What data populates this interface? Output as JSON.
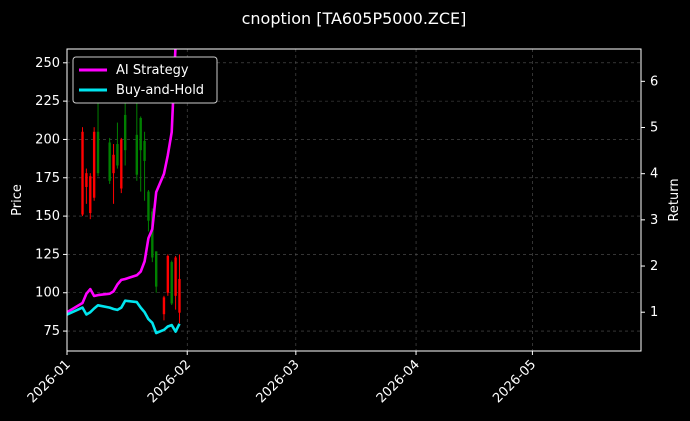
{
  "chart_data": {
    "type": "line",
    "title": "cnoption [TA605P5000.ZCE]",
    "ylabel": "Price",
    "y2label": "Return",
    "xlim": [
      "2026-01-01",
      "2026-05-29"
    ],
    "ylim": [
      62,
      259
    ],
    "y2lim": [
      0.16,
      6.7
    ],
    "xticks": [
      "2026-01",
      "2026-02",
      "2026-03",
      "2026-04",
      "2026-05"
    ],
    "yticks": [
      75,
      100,
      125,
      150,
      175,
      200,
      225,
      250
    ],
    "y2ticks": [
      1,
      2,
      3,
      4,
      5,
      6
    ],
    "grid": true,
    "legend_position": "top-left",
    "colors": {
      "background": "#000000",
      "up_candle": "#008000",
      "down_candle": "#ff0000",
      "ai_strategy": "#ff00ff",
      "buy_and_hold": "#00e5ee",
      "grid": "#555555"
    },
    "candles": [
      {
        "date": "2026-01-05",
        "open": 205,
        "close": 151,
        "high": 208,
        "low": 150
      },
      {
        "date": "2026-01-06",
        "open": 178,
        "close": 169,
        "high": 181,
        "low": 158
      },
      {
        "date": "2026-01-07",
        "open": 176,
        "close": 152,
        "high": 178,
        "low": 148
      },
      {
        "date": "2026-01-08",
        "open": 205,
        "close": 162,
        "high": 208,
        "low": 160
      },
      {
        "date": "2026-01-09",
        "open": 178,
        "close": 205,
        "high": 230,
        "low": 176
      },
      {
        "date": "2026-01-12",
        "open": 173,
        "close": 198,
        "high": 201,
        "low": 171
      },
      {
        "date": "2026-01-13",
        "open": 190,
        "close": 178,
        "high": 197,
        "low": 158
      },
      {
        "date": "2026-01-14",
        "open": 183,
        "close": 197,
        "high": 211,
        "low": 181
      },
      {
        "date": "2026-01-15",
        "open": 200,
        "close": 168,
        "high": 201,
        "low": 165
      },
      {
        "date": "2026-01-16",
        "open": 193,
        "close": 216,
        "high": 242,
        "low": 183
      },
      {
        "date": "2026-01-19",
        "open": 177,
        "close": 203,
        "high": 226,
        "low": 173
      },
      {
        "date": "2026-01-20",
        "open": 193,
        "close": 214,
        "high": 215,
        "low": 166
      },
      {
        "date": "2026-01-21",
        "open": 186,
        "close": 199,
        "high": 205,
        "low": 160
      },
      {
        "date": "2026-01-22",
        "open": 147,
        "close": 166,
        "high": 167,
        "low": 140
      },
      {
        "date": "2026-01-23",
        "open": 123,
        "close": 153,
        "high": 155,
        "low": 120
      },
      {
        "date": "2026-01-24",
        "open": 104,
        "close": 127,
        "high": 127,
        "low": 100
      },
      {
        "date": "2026-01-26",
        "open": 97,
        "close": 86,
        "high": 98,
        "low": 82
      },
      {
        "date": "2026-01-27",
        "open": 124,
        "close": 100,
        "high": 125,
        "low": 98
      },
      {
        "date": "2026-01-28",
        "open": 93,
        "close": 120,
        "high": 121,
        "low": 92
      },
      {
        "date": "2026-01-29",
        "open": 123,
        "close": 98,
        "high": 124,
        "low": 89
      },
      {
        "date": "2026-01-30",
        "open": 109,
        "close": 87,
        "high": 125,
        "low": 80
      }
    ],
    "series": [
      {
        "name": "AI Strategy",
        "x": [
          "2026-01-01",
          "2026-01-05",
          "2026-01-06",
          "2026-01-07",
          "2026-01-08",
          "2026-01-09",
          "2026-01-12",
          "2026-01-13",
          "2026-01-14",
          "2026-01-15",
          "2026-01-16",
          "2026-01-19",
          "2026-01-20",
          "2026-01-21",
          "2026-01-22",
          "2026-01-23",
          "2026-01-24",
          "2026-01-26",
          "2026-01-27",
          "2026-01-28",
          "2026-01-29"
        ],
        "values": [
          1.0,
          1.2,
          1.4,
          1.5,
          1.35,
          1.37,
          1.4,
          1.45,
          1.6,
          1.7,
          1.72,
          1.8,
          1.88,
          2.1,
          2.6,
          2.8,
          3.6,
          4.0,
          4.4,
          4.9,
          6.8
        ]
      },
      {
        "name": "Buy-and-Hold",
        "x": [
          "2026-01-01",
          "2026-01-05",
          "2026-01-06",
          "2026-01-07",
          "2026-01-08",
          "2026-01-09",
          "2026-01-12",
          "2026-01-13",
          "2026-01-14",
          "2026-01-15",
          "2026-01-16",
          "2026-01-19",
          "2026-01-20",
          "2026-01-21",
          "2026-01-22",
          "2026-01-23",
          "2026-01-24",
          "2026-01-26",
          "2026-01-27",
          "2026-01-28",
          "2026-01-29",
          "2026-01-30"
        ],
        "values": [
          0.95,
          1.1,
          0.95,
          1.0,
          1.08,
          1.15,
          1.1,
          1.07,
          1.05,
          1.1,
          1.25,
          1.22,
          1.1,
          1.0,
          0.85,
          0.77,
          0.55,
          0.62,
          0.69,
          0.72,
          0.58,
          0.75
        ]
      }
    ]
  }
}
